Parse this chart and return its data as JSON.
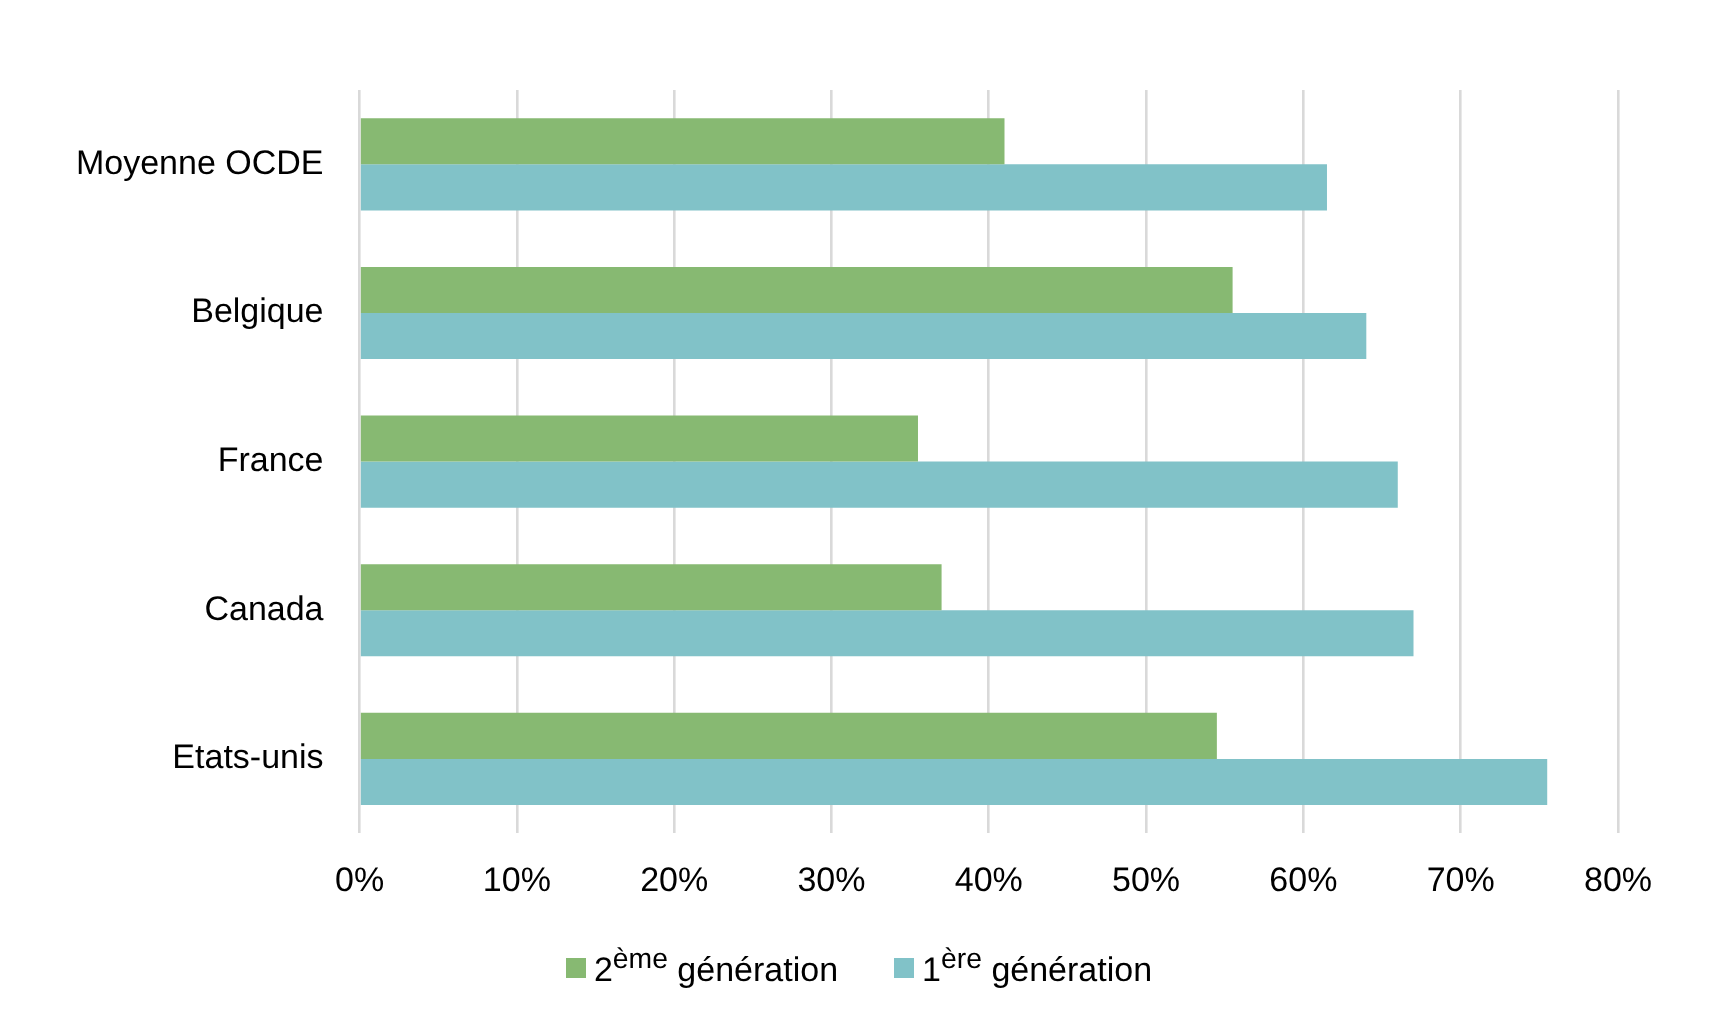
{
  "chart_data": {
    "type": "bar",
    "orientation": "horizontal",
    "categories": [
      "Moyenne OCDE",
      "Belgique",
      "France",
      "Canada",
      "Etats-unis"
    ],
    "series": [
      {
        "name": "2$^{ème}$ génération",
        "color": "#87b972",
        "values": [
          41,
          55.5,
          35.5,
          37,
          54.5
        ]
      },
      {
        "name": "1$^{ère}$ génération",
        "color": "#81c2c8",
        "values": [
          61.5,
          64,
          66,
          67,
          75.5
        ]
      }
    ],
    "xlim": [
      0,
      80
    ],
    "xticks": [
      {
        "value": 0,
        "label": "0%"
      },
      {
        "value": 10,
        "label": "10%"
      },
      {
        "value": 20,
        "label": "20%"
      },
      {
        "value": 30,
        "label": "30%"
      },
      {
        "value": 40,
        "label": "40%"
      },
      {
        "value": 50,
        "label": "50%"
      },
      {
        "value": 60,
        "label": "60%"
      },
      {
        "value": 70,
        "label": "70%"
      },
      {
        "value": 80,
        "label": "80%"
      }
    ],
    "grid": "x",
    "legend": "bottom"
  }
}
